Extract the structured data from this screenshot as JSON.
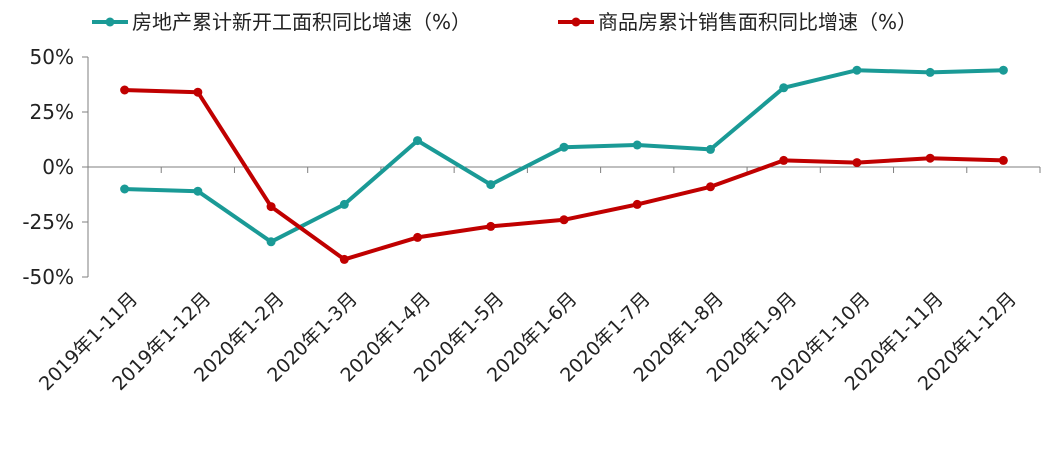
{
  "chart_data": {
    "type": "line",
    "categories": [
      "2019年1-11月",
      "2019年1-12月",
      "2020年1-2月",
      "2020年1-3月",
      "2020年1-4月",
      "2020年1-5月",
      "2020年1-6月",
      "2020年1-7月",
      "2020年1-8月",
      "2020年1-9月",
      "2020年1-10月",
      "2020年1-11月",
      "2020年1-12月"
    ],
    "series": [
      {
        "name": "房地产累计新开工面积同比增速（%）",
        "color": "#1a9a96",
        "values": [
          -10,
          -11,
          -34,
          -17,
          12,
          -8,
          9,
          10,
          8,
          36,
          44,
          43,
          44
        ]
      },
      {
        "name": "商品房累计销售面积同比增速（%）",
        "color": "#c00000",
        "values": [
          35,
          34,
          -18,
          -42,
          -32,
          -27,
          -24,
          -17,
          -9,
          3,
          2,
          4,
          3
        ]
      }
    ],
    "yticks": [
      "50%",
      "25%",
      "0%",
      "-25%",
      "-50%"
    ],
    "ytick_values": [
      50,
      25,
      0,
      -25,
      -50
    ],
    "ylim": [
      -50,
      50
    ],
    "legend_position": "top",
    "grid": false
  }
}
